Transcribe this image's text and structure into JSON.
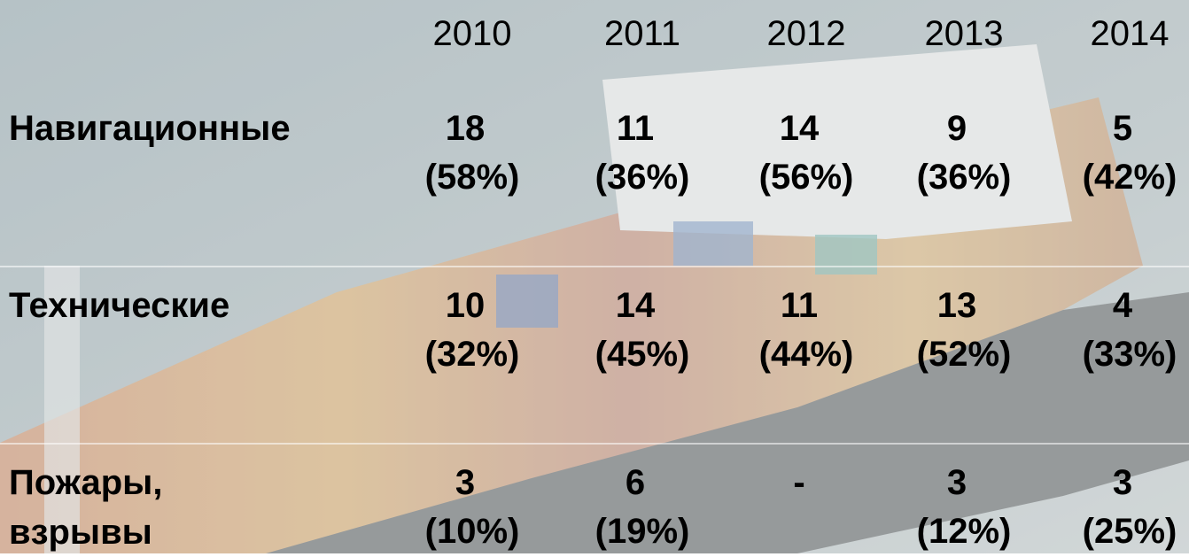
{
  "table": {
    "columns": [
      "2010",
      "2011",
      "2012",
      "2013",
      "2014"
    ],
    "rows": [
      {
        "label": "Навигационные",
        "cells": [
          {
            "count": "18",
            "share": "(58%)"
          },
          {
            "count": "11",
            "share": "(36%)"
          },
          {
            "count": "14",
            "share": "(56%)"
          },
          {
            "count": "9",
            "share": "(36%)"
          },
          {
            "count": "5",
            "share": "(42%)"
          }
        ]
      },
      {
        "label": "Технические",
        "cells": [
          {
            "count": "10",
            "share": "(32%)"
          },
          {
            "count": "14",
            "share": "(45%)"
          },
          {
            "count": "11",
            "share": "(44%)"
          },
          {
            "count": "13",
            "share": "(52%)"
          },
          {
            "count": "4",
            "share": "(33%)"
          }
        ]
      },
      {
        "label": "Пожары,\nвзрывы",
        "cells": [
          {
            "count": "3",
            "share": "(10%)"
          },
          {
            "count": "6",
            "share": "(19%)"
          },
          {
            "count": "-"
          },
          {
            "count": "3",
            "share": "(12%)"
          },
          {
            "count": "3",
            "share": "(25%)"
          }
        ]
      }
    ]
  }
}
